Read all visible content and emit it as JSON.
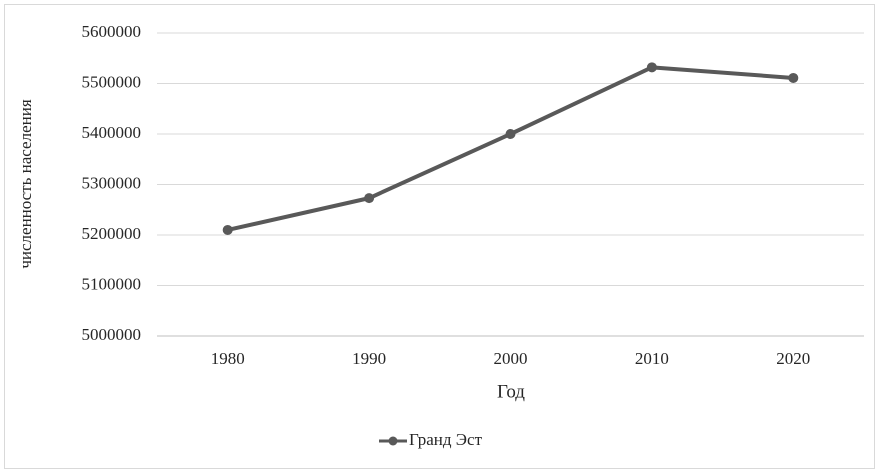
{
  "chart_data": {
    "type": "line",
    "title": "",
    "xlabel": "Год",
    "ylabel": "численность населения",
    "categories": [
      "1980",
      "1990",
      "2000",
      "2010",
      "2020"
    ],
    "series": [
      {
        "name": "Гранд Эст",
        "values": [
          5210000,
          5273000,
          5400000,
          5532000,
          5511000
        ],
        "color": "#595959"
      }
    ],
    "y_ticks": [
      "5000000",
      "5100000",
      "5200000",
      "5300000",
      "5400000",
      "5500000",
      "5600000"
    ],
    "ylim": [
      5000000,
      5600000
    ],
    "grid": "horizontal",
    "legend_position": "bottom"
  }
}
